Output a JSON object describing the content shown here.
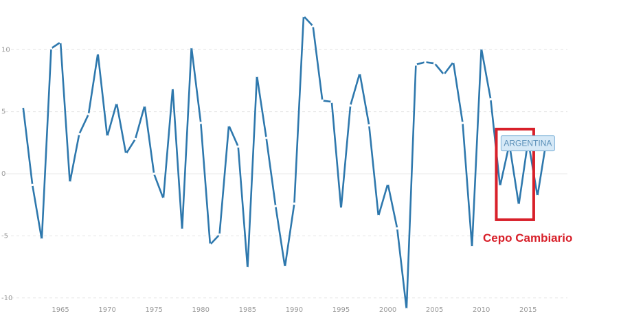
{
  "colors": {
    "series": "#2e78ad",
    "grid": "#e4e4e4",
    "zero_line": "#e8e8e8",
    "highlight": "#d8202a"
  },
  "chart_data": {
    "type": "line",
    "title": "",
    "xlabel": "",
    "ylabel": "",
    "xlim": [
      1960,
      2017
    ],
    "ylim": [
      -12.5,
      14
    ],
    "x_ticks": [
      1965,
      1970,
      1975,
      1980,
      1985,
      1990,
      1995,
      2000,
      2005,
      2010,
      2015
    ],
    "x_tick_labels": [
      "1965",
      "1970",
      "1975",
      "1980",
      "1985",
      "1990",
      "1995",
      "2000",
      "2005",
      "2010",
      "2015"
    ],
    "y_ticks": [
      -10,
      -5,
      0,
      5,
      10
    ],
    "y_tick_labels": [
      "-10",
      "-5",
      "0",
      "5",
      "10"
    ],
    "grid": "horizontal-dashed",
    "series": [
      {
        "name": "ARGENTINA",
        "x": [
          1961,
          1962,
          1963,
          1964,
          1965,
          1966,
          1967,
          1968,
          1969,
          1970,
          1971,
          1972,
          1973,
          1974,
          1975,
          1976,
          1977,
          1978,
          1979,
          1980,
          1981,
          1982,
          1983,
          1984,
          1985,
          1986,
          1987,
          1988,
          1989,
          1990,
          1991,
          1992,
          1993,
          1994,
          1995,
          1996,
          1997,
          1998,
          1999,
          2000,
          2001,
          2002,
          2003,
          2004,
          2005,
          2006,
          2007,
          2008,
          2009,
          2010,
          2011,
          2012,
          2013,
          2014,
          2015,
          2016,
          2017
        ],
        "values": [
          5.4,
          -0.9,
          -5.3,
          10.1,
          10.6,
          -0.7,
          3.2,
          4.8,
          9.7,
          3.0,
          5.7,
          1.6,
          2.8,
          5.5,
          0.0,
          -2.0,
          6.9,
          -4.5,
          10.2,
          4.1,
          -5.7,
          -4.9,
          3.9,
          2.2,
          -7.6,
          7.9,
          2.9,
          -2.6,
          -7.5,
          -2.4,
          12.7,
          11.9,
          5.9,
          5.8,
          -2.8,
          5.5,
          8.1,
          3.9,
          -3.4,
          -0.8,
          -4.4,
          -10.9,
          8.8,
          9.0,
          8.9,
          8.0,
          9.0,
          4.1,
          -5.9,
          10.1,
          6.0,
          -1.0,
          2.4,
          -2.5,
          2.7,
          -1.8,
          2.9
        ]
      }
    ],
    "tooltip": {
      "label": "ARGENTINA",
      "x": 2016
    },
    "annotations": [
      {
        "text": "Cepo Cambiario",
        "x_range": [
          2011.6,
          2015.6
        ],
        "y_range": [
          -3.7,
          3.6
        ]
      }
    ]
  }
}
